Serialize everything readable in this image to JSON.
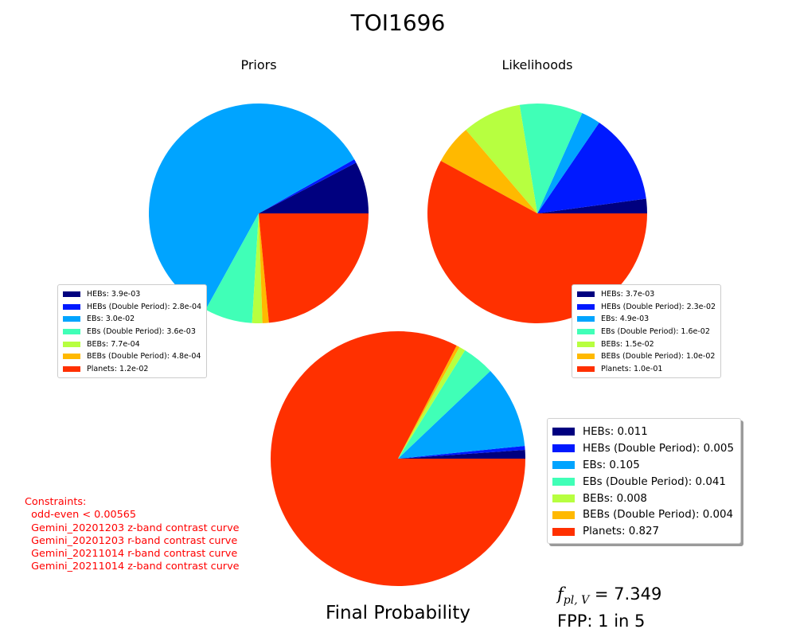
{
  "title": "TOI1696",
  "chart_data": [
    {
      "type": "pie",
      "title": "Priors",
      "legend_placement": "lower-left",
      "labels": [
        "HEBs: 3.9e-03",
        "HEBs (Double Period): 2.8e-04",
        "EBs: 3.0e-02",
        "EBs (Double Period): 3.6e-03",
        "BEBs: 7.7e-04",
        "BEBs (Double Period): 4.8e-04",
        "Planets: 1.2e-02"
      ],
      "values": [
        0.0039,
        0.00028,
        0.03,
        0.0036,
        0.00077,
        0.00048,
        0.012
      ],
      "colors": [
        "#00007f",
        "#0019ff",
        "#00a4ff",
        "#40ffb7",
        "#b7ff40",
        "#ffb900",
        "#ff3000"
      ]
    },
    {
      "type": "pie",
      "title": "Likelihoods",
      "legend_placement": "lower-right",
      "labels": [
        "HEBs: 3.7e-03",
        "HEBs (Double Period): 2.3e-02",
        "EBs: 4.9e-03",
        "EBs (Double Period): 1.6e-02",
        "BEBs: 1.5e-02",
        "BEBs (Double Period): 1.0e-02",
        "Planets: 1.0e-01"
      ],
      "values": [
        0.0037,
        0.023,
        0.0049,
        0.016,
        0.015,
        0.01,
        0.1
      ],
      "colors": [
        "#00007f",
        "#0019ff",
        "#00a4ff",
        "#40ffb7",
        "#b7ff40",
        "#ffb900",
        "#ff3000"
      ]
    },
    {
      "type": "pie",
      "title": "Final Probability",
      "legend_placement": "right",
      "labels": [
        "HEBs: 0.011",
        "HEBs (Double Period): 0.005",
        "EBs: 0.105",
        "EBs (Double Period): 0.041",
        "BEBs: 0.008",
        "BEBs (Double Period): 0.004",
        "Planets: 0.827"
      ],
      "values": [
        0.011,
        0.005,
        0.105,
        0.041,
        0.008,
        0.004,
        0.827
      ],
      "colors": [
        "#00007f",
        "#0019ff",
        "#00a4ff",
        "#40ffb7",
        "#b7ff40",
        "#ffb900",
        "#ff3000"
      ]
    }
  ],
  "constraints": {
    "heading": "Constraints:",
    "lines": [
      "  odd-even < 0.00565",
      "  Gemini_20201203 z-band contrast curve",
      "  Gemini_20201203 r-band contrast curve",
      "  Gemini_20211014 r-band contrast curve",
      "  Gemini_20211014 z-band contrast curve"
    ]
  },
  "fpl": {
    "symbol": "f",
    "sub": "pl, V",
    "value": " = 7.349"
  },
  "fpp": "FPP: 1 in 5"
}
